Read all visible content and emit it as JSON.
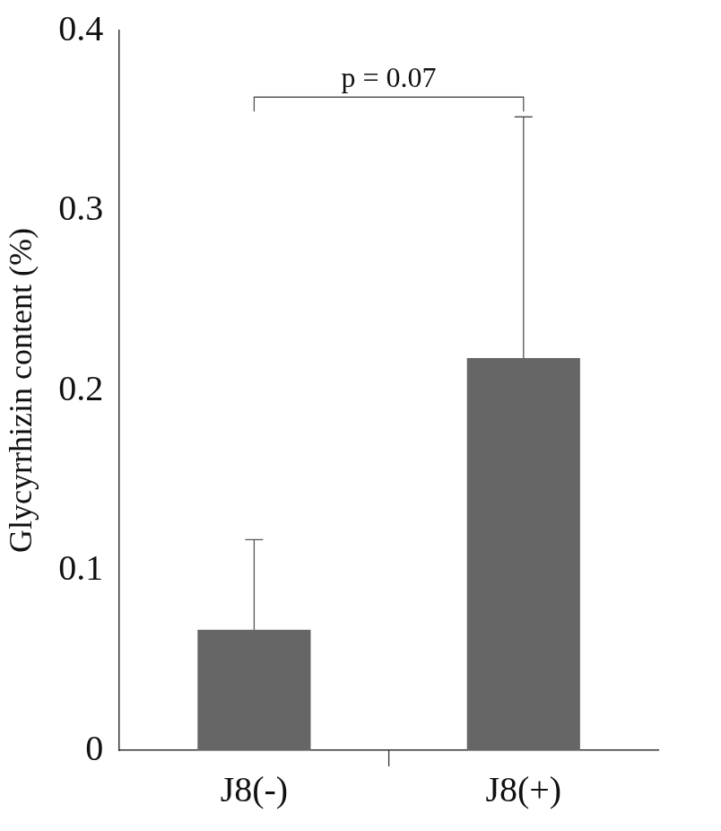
{
  "chart_data": {
    "type": "bar",
    "categories": [
      "J8(-)",
      "J8(+)"
    ],
    "values": [
      0.067,
      0.218
    ],
    "errors": [
      0.05,
      0.134
    ],
    "color": "#666666",
    "y_label": "Glycyrrhizin content (%)",
    "ylim": [
      0,
      0.4
    ],
    "yticks": [
      0,
      0.1,
      0.2,
      0.3,
      0.4
    ],
    "grid": false,
    "annotations": [
      {
        "text": "p = 0.07",
        "from": "J8(-)",
        "to": "J8(+)"
      }
    ]
  }
}
